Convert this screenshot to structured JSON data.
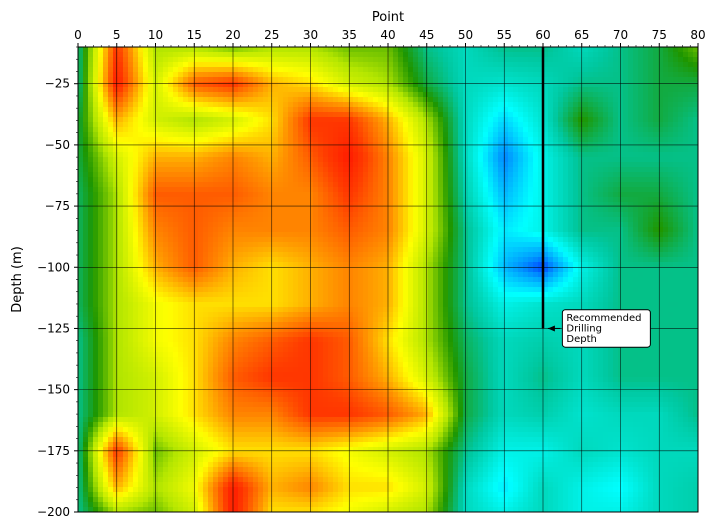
{
  "chart_data": {
    "type": "heatmap",
    "title": "",
    "xlabel": "Point",
    "ylabel": "Depth (m)",
    "xaxis_position": "top",
    "xlim": [
      0,
      80
    ],
    "ylim": [
      -200,
      -10
    ],
    "x_ticks": [
      0,
      5,
      10,
      15,
      20,
      25,
      30,
      35,
      40,
      45,
      50,
      55,
      60,
      65,
      70,
      75,
      80
    ],
    "x_tick_labels": [
      "0",
      "5",
      "10",
      "15",
      "20",
      "25",
      "30",
      "35",
      "40",
      "45",
      "50",
      "55",
      "60",
      "65",
      "70",
      "75",
      "80"
    ],
    "y_ticks": [
      -25,
      -50,
      -75,
      -100,
      -125,
      -150,
      -175,
      -200
    ],
    "y_tick_labels": [
      "−25",
      "−50",
      "−75",
      "−100",
      "−125",
      "−150",
      "−175",
      "−200"
    ],
    "grid": true,
    "colormap": [
      "#0000ff",
      "#0090ff",
      "#00ffff",
      "#00c8a0",
      "#1e9600",
      "#b4e600",
      "#ffff00",
      "#ff9600",
      "#ff3c00",
      "#ff0000"
    ],
    "grid_x": [
      0,
      5,
      10,
      15,
      20,
      25,
      30,
      35,
      40,
      45,
      50,
      55,
      60,
      65,
      70,
      75,
      80
    ],
    "grid_y": [
      -10,
      -25,
      -40,
      -55,
      -70,
      -85,
      -100,
      -115,
      -130,
      -145,
      -160,
      -175,
      -190,
      -200
    ],
    "values": [
      [
        0.35,
        0.9,
        0.55,
        0.55,
        0.5,
        0.55,
        0.55,
        0.5,
        0.5,
        0.35,
        0.3,
        0.35,
        0.35,
        0.3,
        0.35,
        0.4,
        0.5
      ],
      [
        0.35,
        0.95,
        0.6,
        0.85,
        0.9,
        0.75,
        0.7,
        0.6,
        0.55,
        0.4,
        0.3,
        0.28,
        0.3,
        0.35,
        0.35,
        0.4,
        0.4
      ],
      [
        0.4,
        0.75,
        0.6,
        0.55,
        0.6,
        0.7,
        0.9,
        0.9,
        0.75,
        0.55,
        0.3,
        0.18,
        0.28,
        0.45,
        0.35,
        0.4,
        0.35
      ],
      [
        0.4,
        0.6,
        0.75,
        0.75,
        0.8,
        0.75,
        0.85,
        0.95,
        0.8,
        0.6,
        0.3,
        0.1,
        0.25,
        0.35,
        0.35,
        0.35,
        0.35
      ],
      [
        0.38,
        0.55,
        0.85,
        0.85,
        0.85,
        0.8,
        0.8,
        0.9,
        0.8,
        0.6,
        0.32,
        0.15,
        0.25,
        0.35,
        0.4,
        0.4,
        0.35
      ],
      [
        0.38,
        0.55,
        0.8,
        0.85,
        0.8,
        0.8,
        0.8,
        0.85,
        0.8,
        0.6,
        0.35,
        0.2,
        0.25,
        0.35,
        0.35,
        0.45,
        0.35
      ],
      [
        0.38,
        0.55,
        0.75,
        0.85,
        0.75,
        0.7,
        0.75,
        0.8,
        0.75,
        0.55,
        0.35,
        0.15,
        0.05,
        0.25,
        0.35,
        0.35,
        0.35
      ],
      [
        0.38,
        0.55,
        0.65,
        0.7,
        0.7,
        0.7,
        0.75,
        0.8,
        0.75,
        0.55,
        0.35,
        0.25,
        0.28,
        0.3,
        0.35,
        0.35,
        0.35
      ],
      [
        0.35,
        0.55,
        0.65,
        0.7,
        0.8,
        0.85,
        0.9,
        0.85,
        0.7,
        0.55,
        0.38,
        0.3,
        0.32,
        0.3,
        0.35,
        0.35,
        0.35
      ],
      [
        0.35,
        0.55,
        0.6,
        0.7,
        0.85,
        0.9,
        0.9,
        0.85,
        0.75,
        0.6,
        0.4,
        0.3,
        0.35,
        0.3,
        0.35,
        0.35,
        0.35
      ],
      [
        0.35,
        0.55,
        0.6,
        0.7,
        0.8,
        0.8,
        0.9,
        0.9,
        0.85,
        0.75,
        0.4,
        0.3,
        0.32,
        0.28,
        0.3,
        0.3,
        0.35
      ],
      [
        0.35,
        0.9,
        0.5,
        0.6,
        0.7,
        0.7,
        0.7,
        0.65,
        0.6,
        0.55,
        0.35,
        0.25,
        0.25,
        0.3,
        0.28,
        0.3,
        0.3
      ],
      [
        0.35,
        0.75,
        0.55,
        0.65,
        0.95,
        0.75,
        0.8,
        0.7,
        0.7,
        0.6,
        0.3,
        0.2,
        0.3,
        0.25,
        0.22,
        0.3,
        0.32
      ],
      [
        0.35,
        0.55,
        0.5,
        0.6,
        0.95,
        0.7,
        0.7,
        0.65,
        0.6,
        0.55,
        0.3,
        0.25,
        0.3,
        0.25,
        0.25,
        0.3,
        0.32
      ]
    ],
    "annotation": {
      "text_lines": [
        "Recommended",
        "Drilling",
        "Depth"
      ],
      "line_x": 60,
      "line_y_top": -10,
      "line_y_bottom": -125,
      "arrow_tip": [
        60.5,
        -125
      ],
      "text_anchor": [
        62.5,
        -125
      ]
    }
  }
}
